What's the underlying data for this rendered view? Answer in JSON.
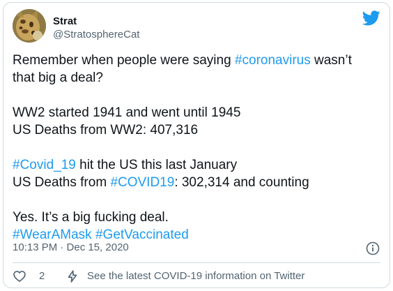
{
  "user": {
    "display_name": "Strat",
    "handle": "@StratosphereCat",
    "avatar": "cat-avatar"
  },
  "icons": {
    "brand": "twitter-bird-icon",
    "info": "info-icon",
    "like": "heart-icon",
    "covid": "lightning-bolt-icon"
  },
  "colors": {
    "hashtag": "#1d9bf0",
    "brand": "#1d9bf0",
    "muted": "#536471",
    "text": "#0f1419"
  },
  "tweet": {
    "p1_a": "Remember when people were saying ",
    "p1_tag": "#coronavirus",
    "p1_b": " wasn’t",
    "p1_c": "that big a deal?",
    "p2_a": "WW2 started 1941 and went until 1945",
    "p2_b": "US Deaths from WW2: 407,316",
    "p3_tag1": "#Covid_19",
    "p3_a": " hit the US this last January",
    "p3_b": "US Deaths from ",
    "p3_tag2": "#COVID19",
    "p3_c": ": 302,314 and counting",
    "p4_a": "Yes. It’s a big fucking deal.",
    "p4_tag1": "#WearAMask",
    "p4_sep": " ",
    "p4_tag2": "#GetVaccinated"
  },
  "meta": {
    "timestamp": "10:13 PM · Dec 15, 2020"
  },
  "actions": {
    "like_count": "2",
    "covid_info": "See the latest COVID-19 information on Twitter"
  }
}
